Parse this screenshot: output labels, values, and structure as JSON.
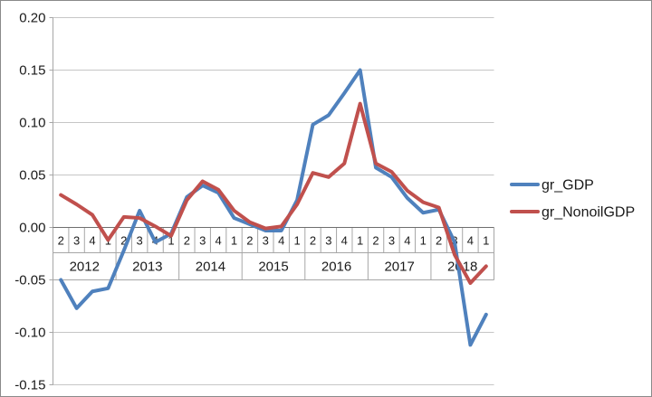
{
  "chart_data": {
    "type": "line",
    "title": "",
    "grid": true,
    "legend_position": "right",
    "x_axis": {
      "quarter_labels": [
        "2",
        "3",
        "4",
        "1",
        "2",
        "3",
        "4",
        "1",
        "2",
        "3",
        "4",
        "1",
        "2",
        "3",
        "4",
        "1",
        "2",
        "3",
        "4",
        "1",
        "2",
        "3",
        "4",
        "1",
        "2",
        "3",
        "4",
        "1"
      ],
      "year_labels": [
        "2012",
        "2013",
        "2014",
        "2015",
        "2016",
        "2017",
        "2018"
      ]
    },
    "y_axis": {
      "tick_labels": [
        "0.20",
        "0.15",
        "0.10",
        "0.05",
        "0.00",
        "-0.05",
        "-0.10",
        "-0.15"
      ],
      "ylim": [
        -0.15,
        0.2
      ],
      "tick_step": 0.05
    },
    "series": [
      {
        "name": "gr_GDP",
        "color": "#4F81BD",
        "values": [
          -0.05,
          -0.077,
          -0.061,
          -0.058,
          -0.022,
          0.016,
          -0.014,
          -0.006,
          0.029,
          0.04,
          0.033,
          0.009,
          0.003,
          -0.003,
          -0.003,
          0.026,
          0.098,
          0.107,
          0.128,
          0.15,
          0.057,
          0.048,
          0.028,
          0.014,
          0.017,
          -0.014,
          -0.112,
          -0.083
        ]
      },
      {
        "name": "gr_NonoilGDP",
        "color": "#C0504D",
        "values": [
          0.031,
          0.022,
          0.012,
          -0.012,
          0.01,
          0.009,
          0.001,
          -0.008,
          0.026,
          0.044,
          0.036,
          0.016,
          0.005,
          -0.001,
          0.001,
          0.022,
          0.052,
          0.048,
          0.061,
          0.118,
          0.061,
          0.053,
          0.035,
          0.024,
          0.019,
          -0.026,
          -0.053,
          -0.037
        ]
      }
    ]
  }
}
